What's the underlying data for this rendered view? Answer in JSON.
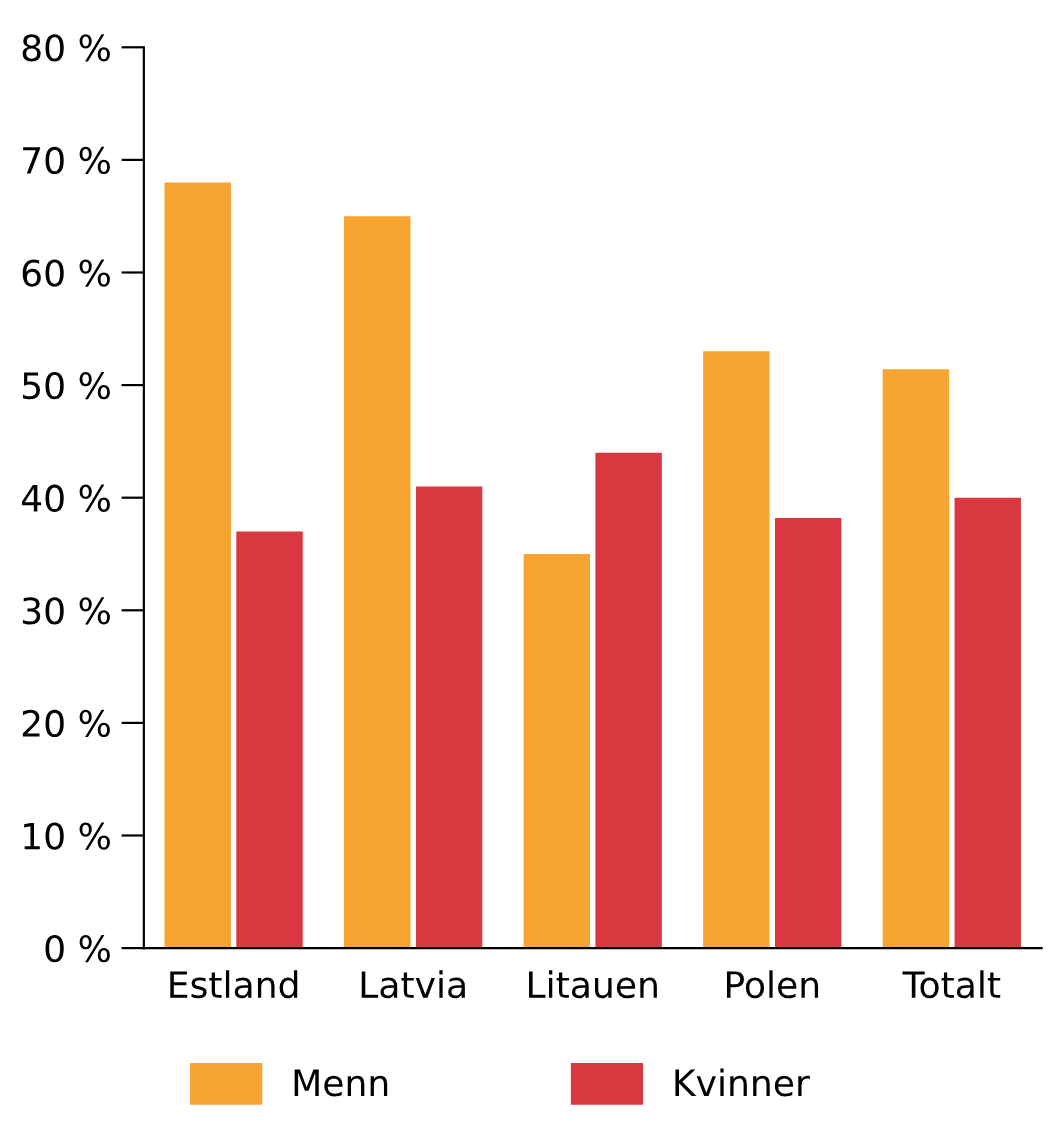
{
  "chart_data": {
    "type": "bar",
    "categories": [
      "Estland",
      "Latvia",
      "Litauen",
      "Polen",
      "Totalt"
    ],
    "series": [
      {
        "name": "Menn",
        "color": "#f7a430",
        "values": [
          68,
          65,
          35,
          53,
          51.4
        ]
      },
      {
        "name": "Kvinner",
        "color": "#d93840",
        "values": [
          37,
          41,
          44,
          38.2,
          40
        ]
      }
    ],
    "ylim": [
      0,
      80
    ],
    "yticks": [
      {
        "value": 0,
        "label": "0 %"
      },
      {
        "value": 10,
        "label": "10 %"
      },
      {
        "value": 20,
        "label": "20 %"
      },
      {
        "value": 30,
        "label": "30 %"
      },
      {
        "value": 40,
        "label": "40 %"
      },
      {
        "value": 50,
        "label": "50 %"
      },
      {
        "value": 60,
        "label": "60 %"
      },
      {
        "value": 70,
        "label": "70 %"
      },
      {
        "value": 80,
        "label": "80 %"
      }
    ],
    "grid": false,
    "legend": "bottom left"
  }
}
